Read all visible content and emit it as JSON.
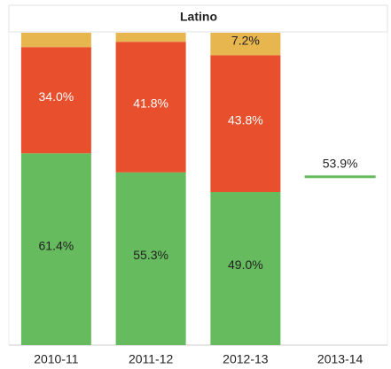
{
  "chart_data": {
    "type": "stacked-bar",
    "title": "Latino",
    "categories": [
      "2010-11",
      "2011-12",
      "2012-13",
      "2013-14"
    ],
    "mark_style": [
      "bar",
      "bar",
      "bar",
      "line"
    ],
    "ylim": [
      0,
      100
    ],
    "series": [
      {
        "color": "#66bb5e",
        "label_color": "#222222",
        "values": [
          61.4,
          55.3,
          49.0,
          53.9
        ],
        "value_labels": [
          "61.4%",
          "55.3%",
          "49.0%",
          "53.9%"
        ]
      },
      {
        "color": "#e84f2c",
        "label_color": "#ffffff",
        "values": [
          34.0,
          41.8,
          43.8,
          null
        ],
        "value_labels": [
          "34.0%",
          "41.8%",
          "43.8%",
          null
        ]
      },
      {
        "color": "#e8b64e",
        "label_color": "#222222",
        "values": [
          4.6,
          2.9,
          7.2,
          null
        ],
        "value_labels": [
          null,
          null,
          "7.2%",
          null
        ]
      }
    ]
  }
}
